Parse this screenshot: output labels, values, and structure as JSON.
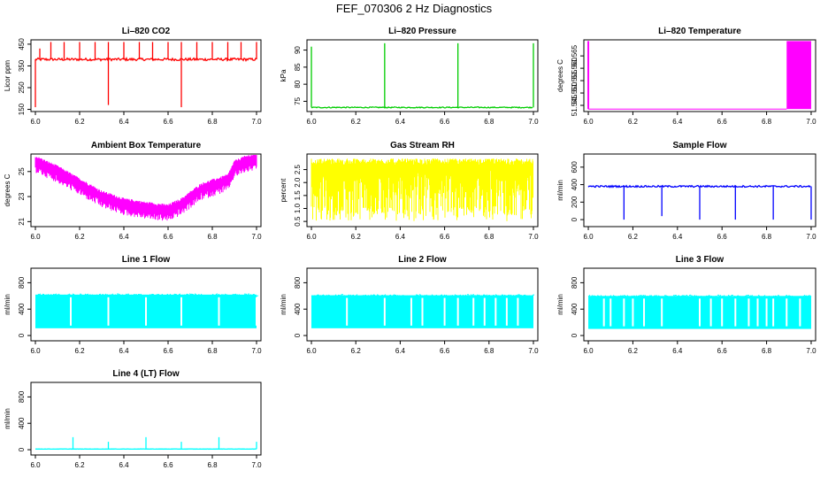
{
  "figure_title": "FEF_070306  2 Hz Diagnostics",
  "colors": {
    "red": "#ff0000",
    "green": "#00cc00",
    "magenta": "#ff00ff",
    "yellow": "#ffff00",
    "blue": "#0000ff",
    "cyan": "#00ffff"
  },
  "chart_data": [
    {
      "type": "line",
      "title": "Li–820 CO2",
      "ylabel": "Licor ppm",
      "color": "red",
      "xlim": [
        5.98,
        7.02
      ],
      "ylim": [
        140,
        470
      ],
      "x_ticks": [
        "6.0",
        "6.2",
        "6.4",
        "6.6",
        "6.8",
        "7.0"
      ],
      "x_tick_values": [
        6.0,
        6.2,
        6.4,
        6.6,
        6.8,
        7.0
      ],
      "y_ticks": [
        "150",
        "250",
        "350",
        "450"
      ],
      "y_tick_values": [
        150,
        250,
        350,
        450
      ],
      "series": [
        {
          "name": "CO2",
          "baseline": 380,
          "noise": 6,
          "spikes": [
            {
              "x": 6.0,
              "y": 160
            },
            {
              "x": 6.02,
              "y": 430
            },
            {
              "x": 6.07,
              "y": 460
            },
            {
              "x": 6.13,
              "y": 460
            },
            {
              "x": 6.2,
              "y": 460
            },
            {
              "x": 6.27,
              "y": 460
            },
            {
              "x": 6.33,
              "y": 170
            },
            {
              "x": 6.33,
              "y": 460
            },
            {
              "x": 6.4,
              "y": 460
            },
            {
              "x": 6.47,
              "y": 460
            },
            {
              "x": 6.53,
              "y": 460
            },
            {
              "x": 6.6,
              "y": 460
            },
            {
              "x": 6.66,
              "y": 160
            },
            {
              "x": 6.66,
              "y": 460
            },
            {
              "x": 6.73,
              "y": 460
            },
            {
              "x": 6.8,
              "y": 460
            },
            {
              "x": 6.87,
              "y": 460
            },
            {
              "x": 6.93,
              "y": 460
            },
            {
              "x": 7.0,
              "y": 460
            }
          ]
        }
      ]
    },
    {
      "type": "line",
      "title": "Li–820 Pressure",
      "ylabel": "kPa",
      "color": "green",
      "xlim": [
        5.98,
        7.02
      ],
      "ylim": [
        72,
        93
      ],
      "x_ticks": [
        "6.0",
        "6.2",
        "6.4",
        "6.6",
        "6.8",
        "7.0"
      ],
      "x_tick_values": [
        6.0,
        6.2,
        6.4,
        6.6,
        6.8,
        7.0
      ],
      "y_ticks": [
        "75",
        "80",
        "85",
        "90"
      ],
      "y_tick_values": [
        75,
        80,
        85,
        90
      ],
      "series": [
        {
          "name": "Pressure",
          "baseline": 73.2,
          "noise": 0.15,
          "spikes": [
            {
              "x": 6.0,
              "y": 91
            },
            {
              "x": 6.33,
              "y": 92
            },
            {
              "x": 6.66,
              "y": 92
            },
            {
              "x": 7.0,
              "y": 92
            }
          ]
        }
      ]
    },
    {
      "type": "line",
      "title": "Li–820 Temperature",
      "ylabel": "degrees C",
      "color": "magenta",
      "xlim": [
        5.98,
        7.02
      ],
      "ylim": [
        51.5425,
        51.5715
      ],
      "x_ticks": [
        "6.0",
        "6.2",
        "6.4",
        "6.6",
        "6.8",
        "7.0"
      ],
      "x_tick_values": [
        6.0,
        6.2,
        6.4,
        6.6,
        6.8,
        7.0
      ],
      "y_ticks": [
        "51.545",
        "51.550",
        "51.555",
        "51.560",
        "51.565"
      ],
      "y_tick_values": [
        51.545,
        51.55,
        51.555,
        51.56,
        51.565
      ],
      "series": [
        {
          "name": "Temperature",
          "baseline": 51.5435,
          "high": 51.571,
          "spikes": [
            {
              "x": 6.0,
              "y": 51.571
            }
          ],
          "toggle_range": [
            6.89,
            7.0
          ]
        }
      ]
    },
    {
      "type": "line",
      "title": "Ambient Box Temperature",
      "ylabel": "degrees C",
      "color": "magenta",
      "xlim": [
        5.98,
        7.02
      ],
      "ylim": [
        20.6,
        26.4
      ],
      "x_ticks": [
        "6.0",
        "6.2",
        "6.4",
        "6.6",
        "6.8",
        "7.0"
      ],
      "x_tick_values": [
        6.0,
        6.2,
        6.4,
        6.6,
        6.8,
        7.0
      ],
      "y_ticks": [
        "21",
        "23",
        "25"
      ],
      "y_tick_values": [
        21,
        23,
        25
      ],
      "series": [
        {
          "name": "Box Temp",
          "knots": [
            [
              6.0,
              25.8
            ],
            [
              6.1,
              25.0
            ],
            [
              6.2,
              24.0
            ],
            [
              6.3,
              23.0
            ],
            [
              6.4,
              22.4
            ],
            [
              6.5,
              22.1
            ],
            [
              6.6,
              21.9
            ],
            [
              6.66,
              22.4
            ],
            [
              6.75,
              23.6
            ],
            [
              6.87,
              24.3
            ],
            [
              6.9,
              25.4
            ],
            [
              6.95,
              25.8
            ],
            [
              7.0,
              26.0
            ]
          ],
          "band": 0.9
        }
      ]
    },
    {
      "type": "line",
      "title": "Gas Stream RH",
      "ylabel": "percent",
      "color": "yellow",
      "xlim": [
        5.98,
        7.02
      ],
      "ylim": [
        0.3,
        3.1
      ],
      "x_ticks": [
        "6.0",
        "6.2",
        "6.4",
        "6.6",
        "6.8",
        "7.0"
      ],
      "x_tick_values": [
        6.0,
        6.2,
        6.4,
        6.6,
        6.8,
        7.0
      ],
      "y_ticks": [
        "0.5",
        "1.0",
        "1.5",
        "2.0",
        "2.5"
      ],
      "y_tick_values": [
        0.5,
        1.0,
        1.5,
        2.0,
        2.5
      ],
      "series": [
        {
          "name": "RH",
          "top": 2.8,
          "bottom": 0.5,
          "dense": true
        }
      ]
    },
    {
      "type": "line",
      "title": "Sample Flow",
      "ylabel": "ml/min",
      "color": "blue",
      "xlim": [
        5.98,
        7.02
      ],
      "ylim": [
        -80,
        750
      ],
      "x_ticks": [
        "6.0",
        "6.2",
        "6.4",
        "6.6",
        "6.8",
        "7.0"
      ],
      "x_tick_values": [
        6.0,
        6.2,
        6.4,
        6.6,
        6.8,
        7.0
      ],
      "y_ticks": [
        "0",
        "200",
        "400",
        "600"
      ],
      "y_tick_values": [
        0,
        200,
        400,
        600
      ],
      "series": [
        {
          "name": "Sample",
          "baseline": 380,
          "noise": 10,
          "spikes": [
            {
              "x": 6.16,
              "y": 0
            },
            {
              "x": 6.33,
              "y": 40
            },
            {
              "x": 6.5,
              "y": 0
            },
            {
              "x": 6.66,
              "y": 0
            },
            {
              "x": 6.83,
              "y": 0
            },
            {
              "x": 7.0,
              "y": 0
            }
          ]
        }
      ]
    },
    {
      "type": "line",
      "title": "Line 1 Flow",
      "ylabel": "ml/min",
      "color": "cyan",
      "xlim": [
        5.98,
        7.02
      ],
      "ylim": [
        -80,
        1020
      ],
      "x_ticks": [
        "6.0",
        "6.2",
        "6.4",
        "6.6",
        "6.8",
        "7.0"
      ],
      "x_tick_values": [
        6.0,
        6.2,
        6.4,
        6.6,
        6.8,
        7.0
      ],
      "y_ticks": [
        "0",
        "400",
        "800"
      ],
      "y_tick_values": [
        0,
        400,
        800
      ],
      "series": [
        {
          "name": "Line1",
          "top": 620,
          "bottom": 110,
          "gaps": [
            6.16,
            6.33,
            6.5,
            6.66,
            6.83,
            7.0
          ]
        }
      ]
    },
    {
      "type": "line",
      "title": "Line 2 Flow",
      "ylabel": "ml/min",
      "color": "cyan",
      "xlim": [
        5.98,
        7.02
      ],
      "ylim": [
        -80,
        1020
      ],
      "x_ticks": [
        "6.0",
        "6.2",
        "6.4",
        "6.6",
        "6.8",
        "7.0"
      ],
      "x_tick_values": [
        6.0,
        6.2,
        6.4,
        6.6,
        6.8,
        7.0
      ],
      "y_ticks": [
        "0",
        "400",
        "800"
      ],
      "y_tick_values": [
        0,
        400,
        800
      ],
      "series": [
        {
          "name": "Line2",
          "top": 610,
          "bottom": 110,
          "gaps": [
            6.16,
            6.33,
            6.45,
            6.5,
            6.6,
            6.66,
            6.73,
            6.78,
            6.83,
            6.88,
            6.93
          ]
        }
      ]
    },
    {
      "type": "line",
      "title": "Line 3 Flow",
      "ylabel": "ml/min",
      "color": "cyan",
      "xlim": [
        5.98,
        7.02
      ],
      "ylim": [
        -80,
        1020
      ],
      "x_ticks": [
        "6.0",
        "6.2",
        "6.4",
        "6.6",
        "6.8",
        "7.0"
      ],
      "x_tick_values": [
        6.0,
        6.2,
        6.4,
        6.6,
        6.8,
        7.0
      ],
      "y_ticks": [
        "0",
        "400",
        "800"
      ],
      "y_tick_values": [
        0,
        400,
        800
      ],
      "series": [
        {
          "name": "Line3",
          "top": 600,
          "bottom": 100,
          "gaps": [
            6.07,
            6.1,
            6.16,
            6.2,
            6.25,
            6.33,
            6.5,
            6.55,
            6.6,
            6.66,
            6.72,
            6.76,
            6.8,
            6.83,
            6.89,
            6.95
          ]
        }
      ]
    },
    {
      "type": "line",
      "title": "Line 4 (LT) Flow",
      "ylabel": "ml/min",
      "color": "cyan",
      "xlim": [
        5.98,
        7.02
      ],
      "ylim": [
        -80,
        1020
      ],
      "x_ticks": [
        "6.0",
        "6.2",
        "6.4",
        "6.6",
        "6.8",
        "7.0"
      ],
      "x_tick_values": [
        6.0,
        6.2,
        6.4,
        6.6,
        6.8,
        7.0
      ],
      "y_ticks": [
        "0",
        "400",
        "800"
      ],
      "y_tick_values": [
        0,
        400,
        800
      ],
      "series": [
        {
          "name": "Line4",
          "baseline": 10,
          "noise": 2,
          "spikes": [
            {
              "x": 6.17,
              "y": 190
            },
            {
              "x": 6.33,
              "y": 120
            },
            {
              "x": 6.5,
              "y": 190
            },
            {
              "x": 6.66,
              "y": 120
            },
            {
              "x": 6.83,
              "y": 190
            },
            {
              "x": 7.0,
              "y": 120
            }
          ]
        }
      ]
    }
  ]
}
